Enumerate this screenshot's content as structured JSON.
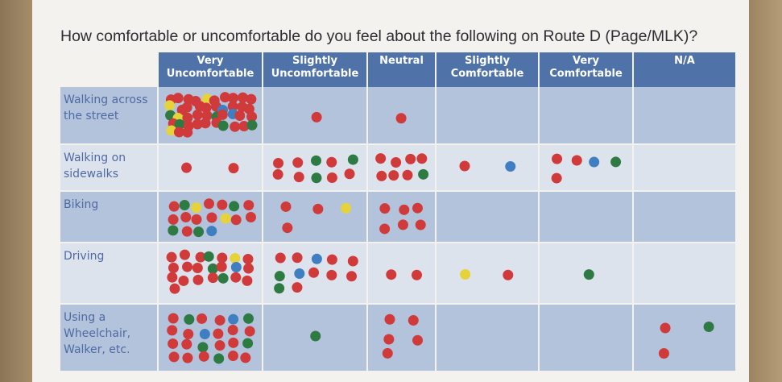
{
  "title": "How comfortable or uncomfortable do you feel about the following on Route D (Page/MLK)?",
  "table": {
    "columns": [
      "Very Uncomfortable",
      "Slightly Uncomfortable",
      "Neutral",
      "Slightly Comfortable",
      "Very Comfortable",
      "N/A"
    ],
    "rows": [
      "Walking across the street",
      "Walking on sidewalks",
      "Biking",
      "Driving",
      "Using a Wheelchair, Walker, etc."
    ]
  }
}
